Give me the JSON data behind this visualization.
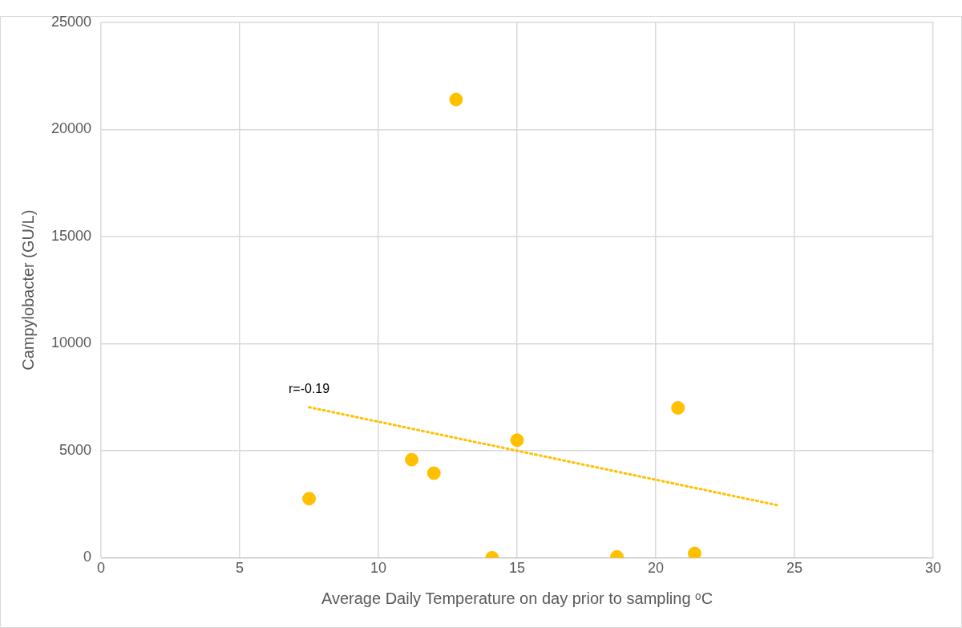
{
  "chart_data": {
    "type": "scatter",
    "xlabel": "Average Daily Temperature on day prior to sampling ᵒC",
    "ylabel": "Campylobacter (GU/L)",
    "xlim": [
      0,
      30
    ],
    "xticks": [
      0,
      5,
      10,
      15,
      20,
      25,
      30
    ],
    "ylim": [
      0,
      25000
    ],
    "yticks": [
      0,
      5000,
      10000,
      15000,
      20000,
      25000
    ],
    "grid": true,
    "legend": false,
    "marker": "circle",
    "annotations": [
      "r=-0.19"
    ],
    "series": [
      {
        "color": "#ffc000",
        "x": [
          7.5,
          11.2,
          12.0,
          12.8,
          14.1,
          15.0,
          18.6,
          20.8,
          21.4
        ],
        "values": [
          2760,
          4580,
          3950,
          21400,
          0,
          5490,
          40,
          7000,
          200
        ]
      },
      {
        "type": "line",
        "color": "#ffc000",
        "line_style": "dotted",
        "marker": "none",
        "x": [
          7.5,
          24.4
        ],
        "values": [
          7030,
          2450
        ]
      }
    ]
  }
}
